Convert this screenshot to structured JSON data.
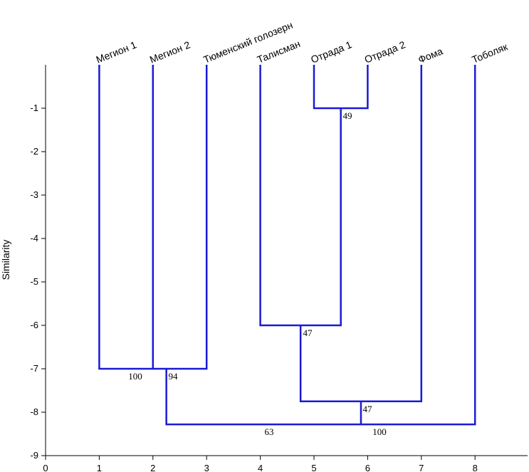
{
  "chart_data": {
    "type": "dendrogram",
    "ylabel": "Similarity",
    "xlim": [
      0,
      9
    ],
    "ylim": [
      -9,
      0
    ],
    "x_ticks": [
      "0",
      "1",
      "2",
      "3",
      "4",
      "5",
      "6",
      "7",
      "8"
    ],
    "y_ticks": [
      "-1",
      "-2",
      "-3",
      "-4",
      "-5",
      "-6",
      "-7",
      "-8",
      "-9"
    ],
    "leaves": [
      {
        "name": "Мегион 1",
        "x": 1
      },
      {
        "name": "Мегион 2",
        "x": 2
      },
      {
        "name": "Тюменский голозерн",
        "x": 3
      },
      {
        "name": "Талисман",
        "x": 4
      },
      {
        "name": "Отрада 1",
        "x": 5
      },
      {
        "name": "Отрада 2",
        "x": 6
      },
      {
        "name": "Фома",
        "x": 7
      },
      {
        "name": "Тоболяк",
        "x": 8
      }
    ],
    "merges": [
      {
        "left_x": 5,
        "right_x": 6,
        "left_top": 0,
        "right_top": 0,
        "similarity": -1.0,
        "bootstrap": "49"
      },
      {
        "left_x": 4,
        "right_x": 5.5,
        "left_top": 0,
        "right_top": -1.0,
        "similarity": -6.0,
        "bootstrap": "47"
      },
      {
        "left_x": 1,
        "right_x": 3,
        "left_top": 0,
        "right_top": 0,
        "similarity": -7.0,
        "bootstrap": "100"
      },
      {
        "left_x": 2,
        "right_x": 2,
        "left_top": 0,
        "right_top": 0,
        "similarity": -7.0,
        "bootstrap": "94"
      },
      {
        "left_x": 4.75,
        "right_x": 7,
        "left_top": -6.0,
        "right_top": 0,
        "similarity": -7.75,
        "bootstrap": "47"
      },
      {
        "left_x": 2.25,
        "right_x": 8,
        "left_top": -7.0,
        "right_top": 0,
        "similarity": -8.28,
        "bootstrap": "63"
      },
      {
        "left_x": 5.875,
        "right_x": 5.875,
        "left_top": -7.75,
        "right_top": -8.28,
        "similarity": -8.28,
        "bootstrap": "100"
      }
    ]
  }
}
